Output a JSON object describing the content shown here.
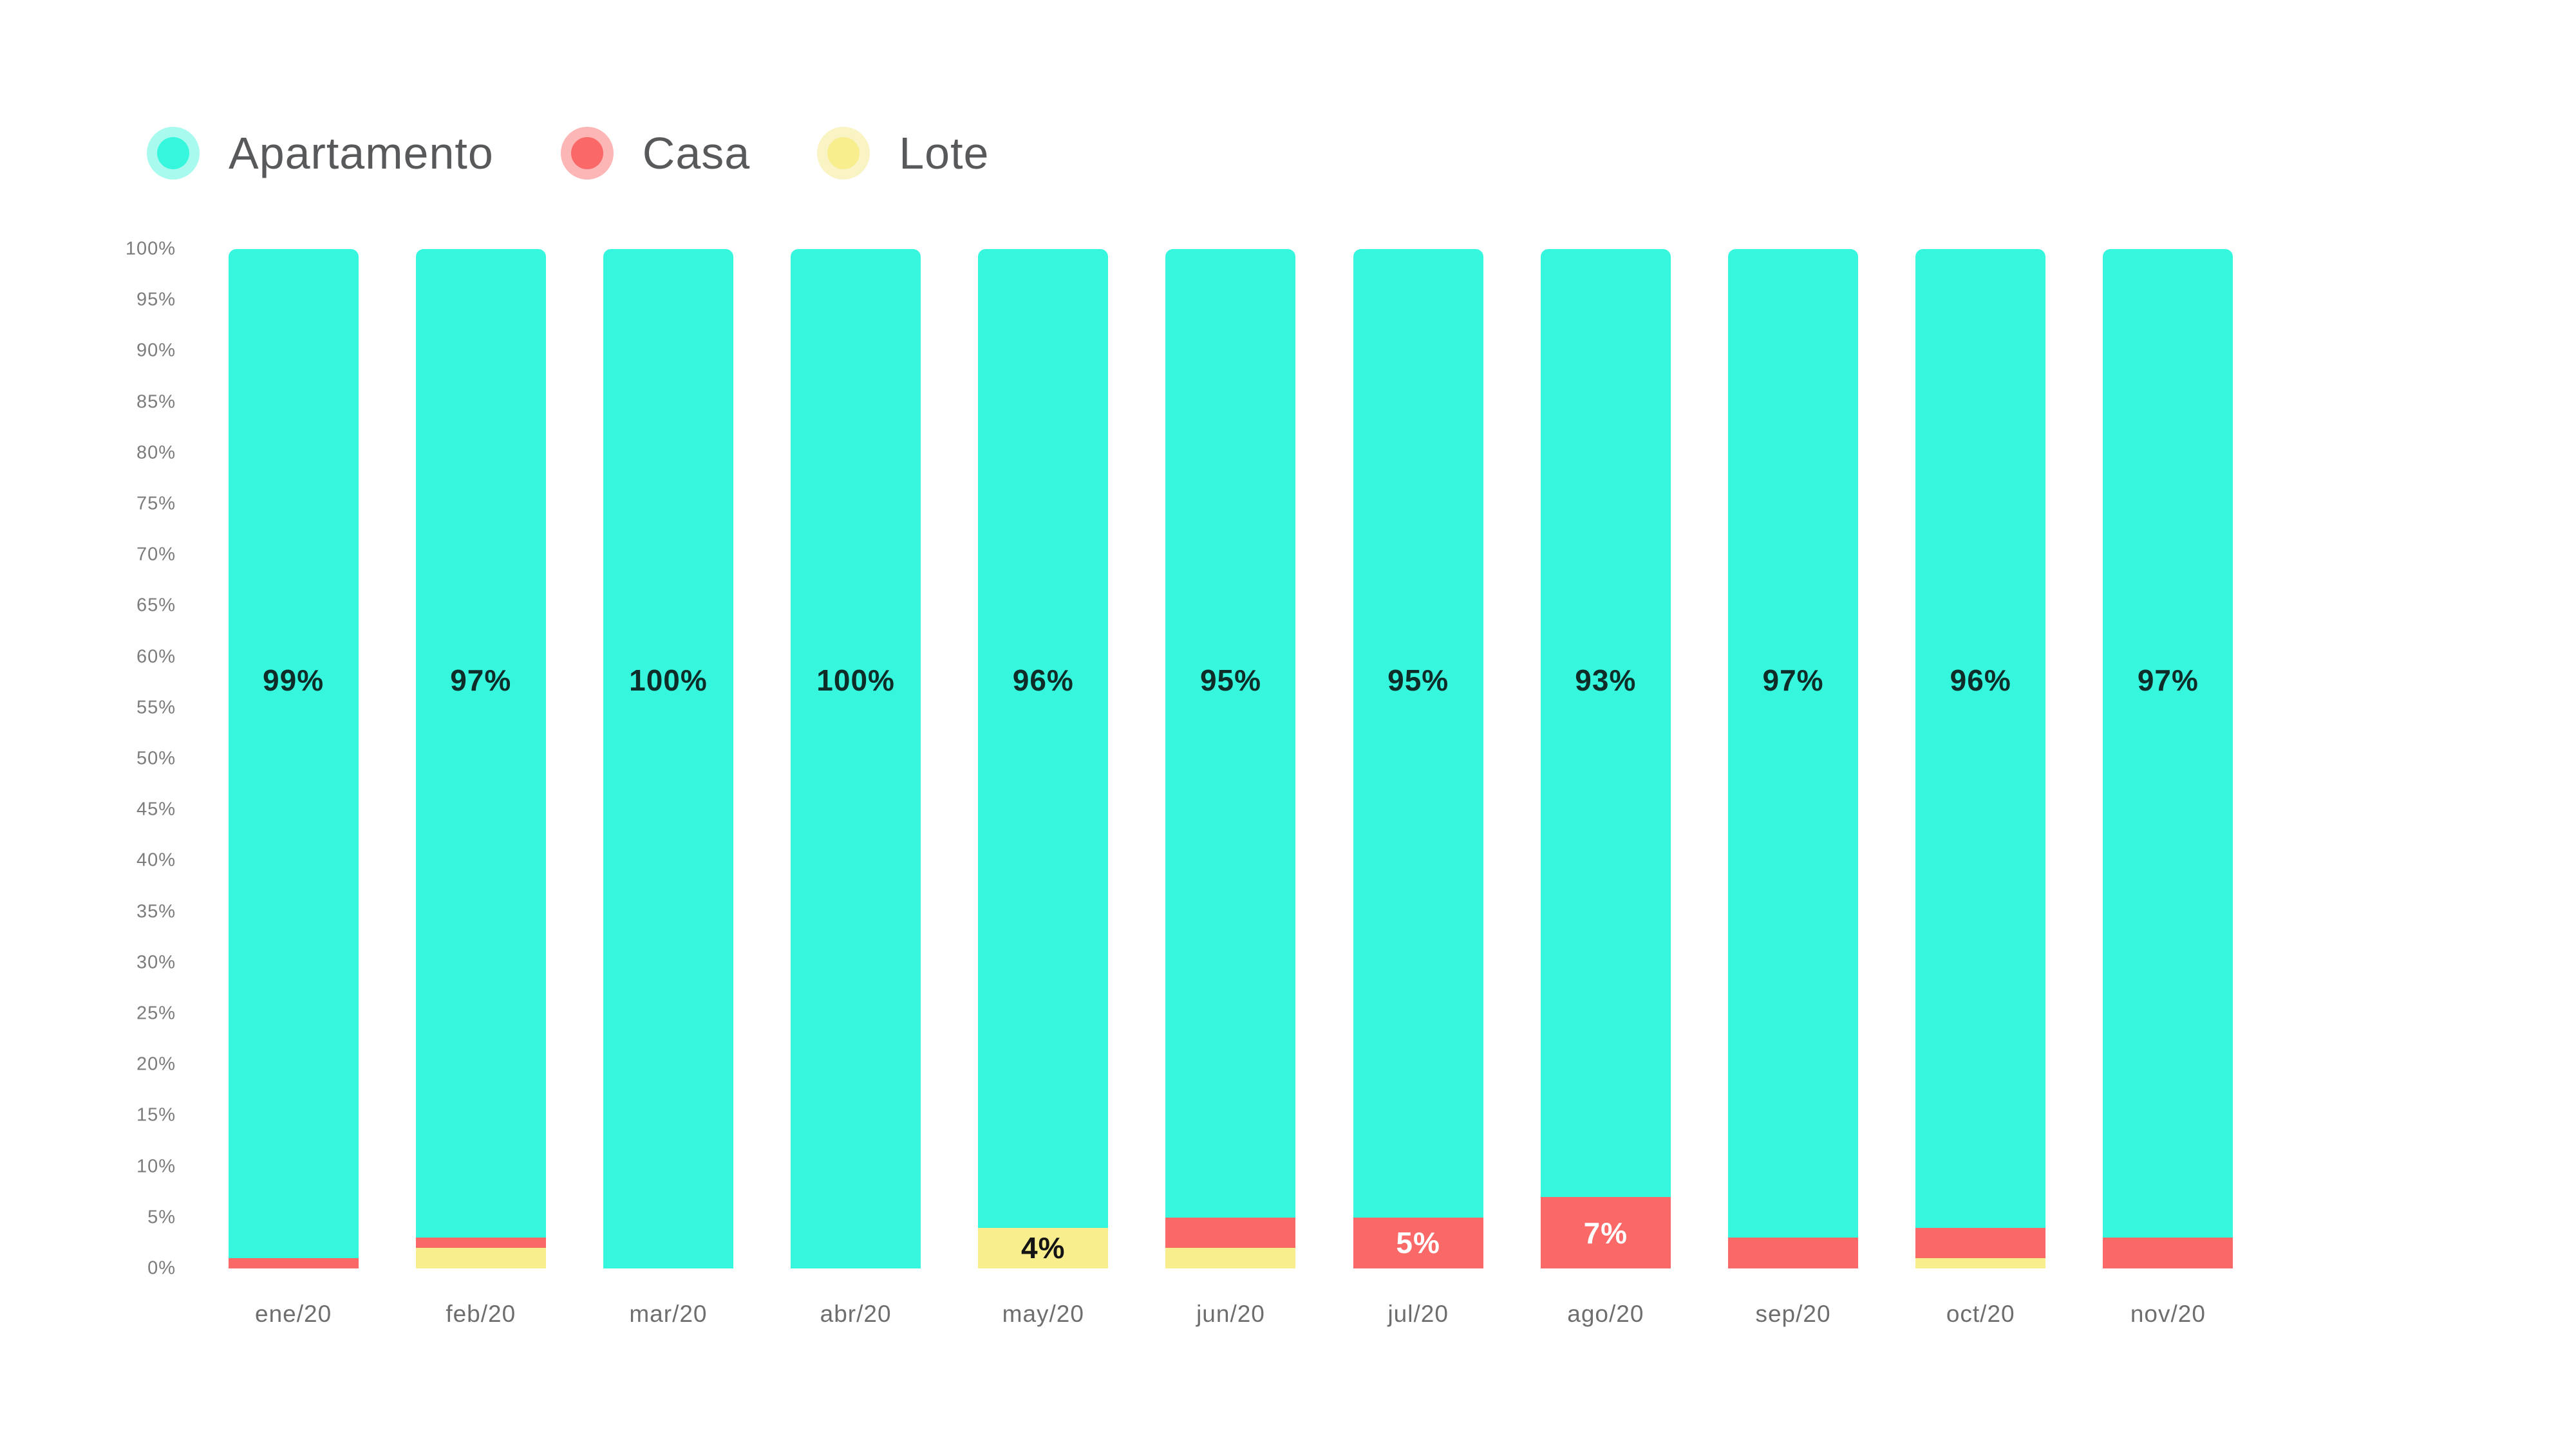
{
  "legend": {
    "items": [
      {
        "label": "Apartamento",
        "color": "#36F7DE",
        "halo": "#A9FAEE"
      },
      {
        "label": "Casa",
        "color": "#FA6868",
        "halo": "#FCB6B6"
      },
      {
        "label": "Lote",
        "color": "#F8EE8E",
        "halo": "#FAF3C3"
      }
    ]
  },
  "chart_data": {
    "type": "bar",
    "stacked": true,
    "percent_stacked": true,
    "categories": [
      "ene/20",
      "feb/20",
      "mar/20",
      "abr/20",
      "may/20",
      "jun/20",
      "jul/20",
      "ago/20",
      "sep/20",
      "oct/20",
      "nov/20"
    ],
    "series": [
      {
        "name": "Apartamento",
        "color": "#36F7DE",
        "label_color": "#0F2D28",
        "values": [
          99,
          97,
          100,
          100,
          96,
          95,
          95,
          93,
          97,
          96,
          97
        ]
      },
      {
        "name": "Casa",
        "color": "#FA6868",
        "label_color": "#FFFFFF",
        "values": [
          1,
          1,
          0,
          0,
          0,
          3,
          5,
          7,
          3,
          3,
          3
        ]
      },
      {
        "name": "Lote",
        "color": "#F8EE8E",
        "label_color": "#141414",
        "values": [
          0,
          2,
          0,
          0,
          4,
          2,
          0,
          0,
          0,
          1,
          0
        ]
      }
    ],
    "visible_segment_labels": [
      "99%",
      "97%",
      "100%",
      "100%",
      "96%",
      "95%",
      "95%",
      "93%",
      "97%",
      "96%",
      "97%",
      "4%",
      "5%",
      "7%"
    ],
    "value_suffix": "%",
    "label_min_value_to_show": 4,
    "y_ticks": [
      "100%",
      "95%",
      "90%",
      "85%",
      "80%",
      "75%",
      "70%",
      "65%",
      "60%",
      "55%",
      "50%",
      "45%",
      "40%",
      "35%",
      "30%",
      "25%",
      "20%",
      "15%",
      "10%",
      "5%",
      "0%"
    ],
    "ylim": [
      0,
      100
    ],
    "grid": false,
    "axis_lines": false,
    "legend_position": "top-left",
    "title": "",
    "xlabel": "",
    "ylabel": ""
  }
}
